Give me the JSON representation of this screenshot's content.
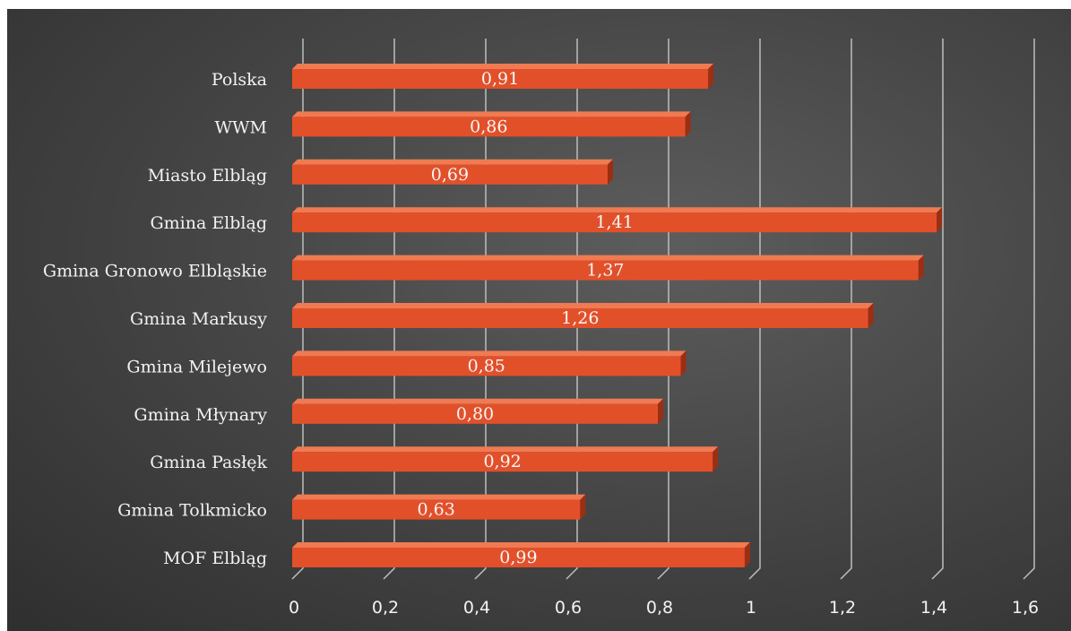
{
  "chart_data": {
    "type": "bar",
    "orientation": "horizontal",
    "title": "",
    "xlabel": "",
    "ylabel": "",
    "categories": [
      "Polska",
      "WWM",
      "Miasto Elbląg",
      "Gmina Elbląg",
      "Gmina Gronowo Elbląskie",
      "Gmina Markusy",
      "Gmina Milejewo",
      "Gmina Młynary",
      "Gmina Pasłęk",
      "Gmina Tolkmicko",
      "MOF Elbląg"
    ],
    "values": [
      0.91,
      0.86,
      0.69,
      1.41,
      1.37,
      1.26,
      0.85,
      0.8,
      0.92,
      0.63,
      0.99
    ],
    "data_labels": [
      "0,91",
      "0,86",
      "0,69",
      "1,41",
      "1,37",
      "1,26",
      "0,85",
      "0,80",
      "0,92",
      "0,63",
      "0,99"
    ],
    "xlim": [
      0,
      1.6
    ],
    "x_ticks": [
      0,
      0.2,
      0.4,
      0.6,
      0.8,
      1,
      1.2,
      1.4,
      1.6
    ],
    "x_tick_labels": [
      "0",
      "0,2",
      "0,4",
      "0,6",
      "0,8",
      "1",
      "1,2",
      "1,4",
      "1,6"
    ],
    "grid": "vertical",
    "legend": "none",
    "colors": {
      "bar_front": "#e2502a",
      "bar_top": "#f07a52",
      "bar_side": "#9c2e12",
      "gridline": "#bdbdbd",
      "text": "#f2f2f2"
    }
  }
}
